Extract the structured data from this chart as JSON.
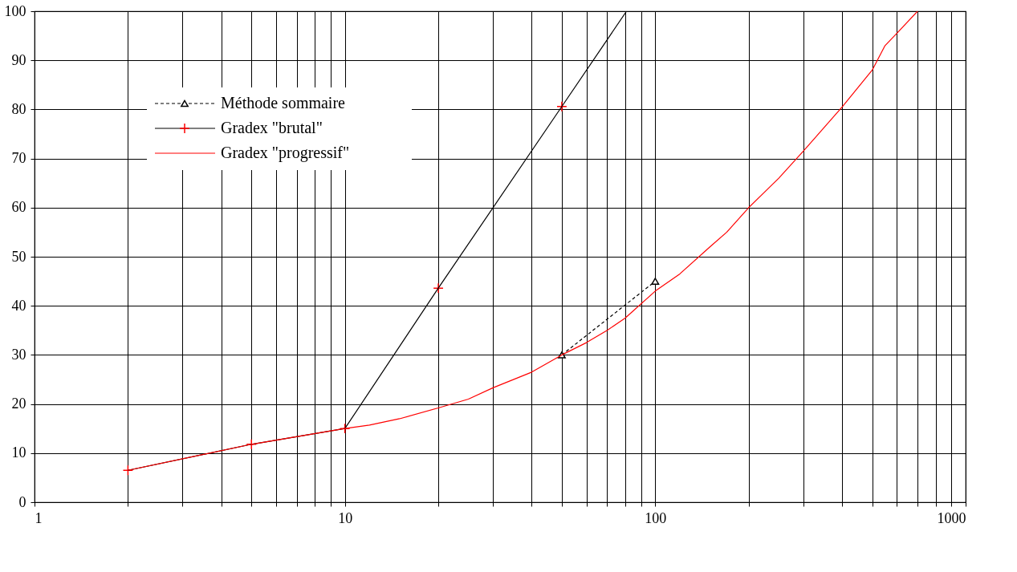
{
  "chart_data": {
    "type": "line",
    "xlim": [
      1,
      1000
    ],
    "xticks": [
      1,
      {
        "value": 2,
        "label": null
      },
      {
        "value": 3,
        "label": null
      },
      {
        "value": 4,
        "label": null
      },
      {
        "value": 5,
        "label": null
      },
      {
        "value": 6,
        "label": null
      },
      {
        "value": 7,
        "label": null
      },
      {
        "value": 8,
        "label": null
      },
      {
        "value": 9,
        "label": null
      },
      10,
      {
        "value": 20,
        "label": null
      },
      {
        "value": 30,
        "label": null
      },
      {
        "value": 40,
        "label": null
      },
      {
        "value": 50,
        "label": null
      },
      {
        "value": 60,
        "label": null
      },
      {
        "value": 70,
        "label": null
      },
      {
        "value": 80,
        "label": null
      },
      {
        "value": 90,
        "label": null
      },
      100,
      {
        "value": 200,
        "label": null
      },
      {
        "value": 300,
        "label": null
      },
      {
        "value": 400,
        "label": null
      },
      {
        "value": 500,
        "label": null
      },
      {
        "value": 600,
        "label": null
      },
      {
        "value": 700,
        "label": null
      },
      {
        "value": 800,
        "label": null
      },
      {
        "value": 900,
        "label": null
      },
      1000
    ],
    "ylim": [
      0,
      100
    ],
    "yticks": [
      0,
      10,
      20,
      30,
      40,
      50,
      60,
      70,
      80,
      90,
      100
    ],
    "log": "x",
    "grid": true,
    "legend": "top left",
    "series": [
      {
        "name": "Méthode sommaire",
        "color": "#000000",
        "marker": "triangle",
        "line_style": "dashed",
        "x": [
          50,
          100
        ],
        "values": [
          30,
          45
        ]
      },
      {
        "name": "Gradex \"brutal\"",
        "type": "scatter",
        "color": "#ff0000",
        "marker": "cross",
        "x": [
          2,
          5,
          10,
          20,
          50
        ],
        "values": [
          6.5,
          11.8,
          15,
          43.6,
          80.6
        ]
      },
      {
        "color": "#000000",
        "marker": "none",
        "line_style": "solid",
        "x": [
          2,
          5,
          10,
          20,
          50,
          80.8
        ],
        "values": [
          6.5,
          11.8,
          15,
          43.6,
          80.6,
          100
        ]
      },
      {
        "name": "Gradex \"progressif\"",
        "color": "#ff0000",
        "marker": "none",
        "line_style": "solid",
        "x": [
          2,
          5,
          10,
          12,
          15,
          20,
          25,
          30,
          40,
          50,
          60,
          70,
          80,
          100,
          120,
          150,
          170,
          200,
          250,
          300,
          400,
          500,
          550,
          600,
          700
        ],
        "values": [
          6.5,
          11.8,
          15,
          15.7,
          17,
          19.2,
          21,
          23.3,
          26.5,
          30,
          32.5,
          35,
          37.5,
          43,
          46.5,
          52,
          55,
          60,
          66,
          71.5,
          80.5,
          88,
          93,
          95.5,
          100
        ]
      }
    ]
  }
}
